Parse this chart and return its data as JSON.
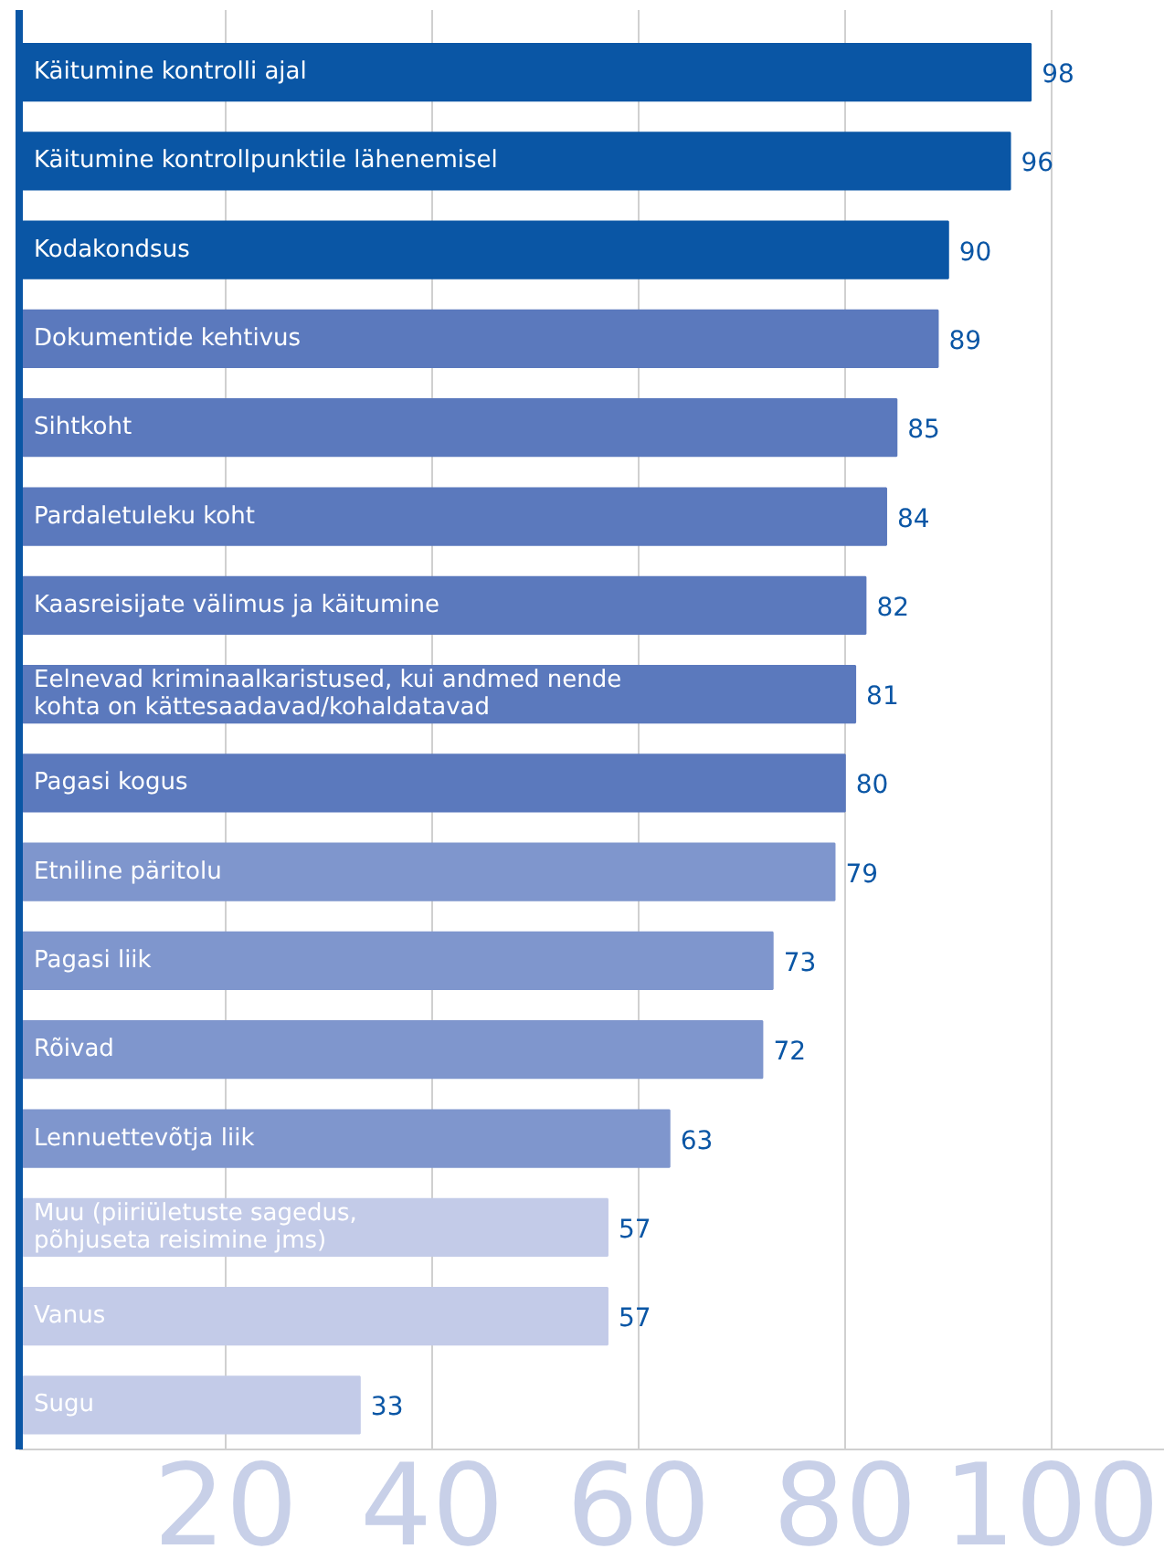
{
  "chart_data": {
    "type": "bar",
    "orientation": "horizontal",
    "categories": [
      "Käitumine kontrolli ajal",
      "Käitumine kontrollpunktile lähenemisel",
      "Kodakondsus",
      "Dokumentide kehtivus",
      "Sihtkoht",
      "Pardaletuleku koht",
      "Kaasreisijate välimus ja käitumine",
      "Eelnevad kriminaalkaristused, kui andmed nende\nkohta on kättesaadavad/kohaldatavad",
      "Pagasi kogus",
      "Etniline päritolu",
      "Pagasi liik",
      "Rõivad",
      "Lennuettevõtja liik",
      "Muu (piiriületuste sagedus,\npõhjuseta reisimine jms)",
      "Vanus",
      "Sugu"
    ],
    "values": [
      98,
      96,
      90,
      89,
      85,
      84,
      82,
      81,
      80,
      79,
      73,
      72,
      63,
      57,
      57,
      33
    ],
    "colors": [
      "#0a56a5",
      "#0a56a5",
      "#0a56a5",
      "#5b79bd",
      "#5b79bd",
      "#5b79bd",
      "#5b79bd",
      "#5b79bd",
      "#5b79bd",
      "#7f96cd",
      "#7f96cd",
      "#7f96cd",
      "#7f96cd",
      "#c3cbe8",
      "#c3cbe8",
      "#c3cbe8"
    ],
    "data_labels": true,
    "xlim": [
      0,
      111
    ],
    "xticks": [
      20,
      40,
      60,
      80,
      100
    ],
    "grid": "x",
    "tick_labels": "x"
  }
}
